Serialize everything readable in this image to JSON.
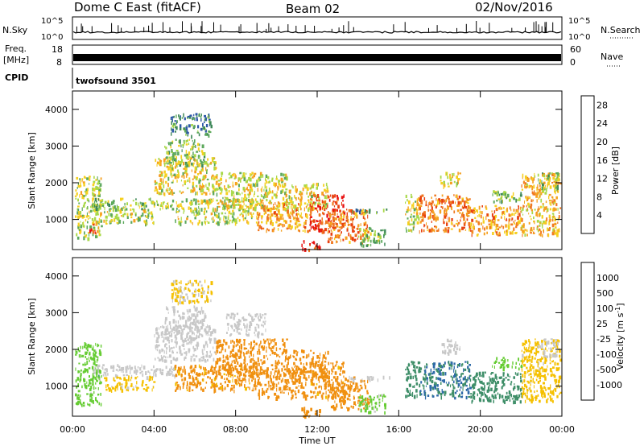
{
  "header": {
    "station": "Dome C East (fitACF)",
    "beam": "Beam 02",
    "date": "02/Nov/2016"
  },
  "strips": {
    "nsky_label": "N.Sky",
    "nsky_ticks": [
      "10^5",
      "10^0"
    ],
    "nsearch_label": "N.Search",
    "nsearch_ticks": [
      "10^5",
      "10^0"
    ],
    "freq_label_1": "Freq.",
    "freq_label_2": "[MHz]",
    "freq_ticks": [
      "18",
      "8"
    ],
    "nave_label": "Nave",
    "nave_ticks": [
      "60",
      "0"
    ],
    "cpid_label": "CPID",
    "cpid_value": "twofsound 3501"
  },
  "x_axis": {
    "label": "Time UT",
    "ticks": [
      "00:00",
      "04:00",
      "08:00",
      "12:00",
      "16:00",
      "20:00",
      "00:00"
    ]
  },
  "colors": {
    "power_scale": [
      "#1010ee",
      "#2e58a8",
      "#3e8858",
      "#5ca85c",
      "#a8d848",
      "#f5d020",
      "#f5a020",
      "#f07820",
      "#e84010",
      "#e81010"
    ],
    "velocity_scale": [
      "#1e32c8",
      "#2e6aa8",
      "#3e8e68",
      "#66cc33",
      "#c8c8c8",
      "#f5c000",
      "#f09010",
      "#e85010",
      "#e81010"
    ]
  },
  "chart_data": [
    {
      "type": "heatmap",
      "title": "Power",
      "xlabel": "Time UT",
      "ylabel": "Slant Range [km]",
      "xlim": [
        0,
        24
      ],
      "ylim": [
        180,
        4500
      ],
      "yticks": [
        1000,
        2000,
        3000,
        4000
      ],
      "colorbar_label": "Power [dB]",
      "colorbar_ticks": [
        4,
        8,
        12,
        16,
        20,
        24,
        28
      ],
      "colorbar_range": [
        0,
        30
      ],
      "regions": [
        {
          "t0": 0.1,
          "t1": 1.4,
          "r0": 500,
          "r1": 2200,
          "v": 14
        },
        {
          "t0": 0.8,
          "t1": 1.1,
          "r0": 600,
          "r1": 900,
          "v": 26
        },
        {
          "t0": 1.0,
          "t1": 5.0,
          "r0": 1300,
          "r1": 1600,
          "v": 12
        },
        {
          "t0": 1.5,
          "t1": 4.0,
          "r0": 900,
          "r1": 1300,
          "v": 14
        },
        {
          "t0": 4.0,
          "t1": 7.0,
          "r0": 1700,
          "r1": 2700,
          "v": 16
        },
        {
          "t0": 4.5,
          "t1": 6.5,
          "r0": 2500,
          "r1": 3200,
          "v": 12
        },
        {
          "t0": 4.8,
          "t1": 6.8,
          "r0": 3300,
          "r1": 3900,
          "v": 8
        },
        {
          "t0": 5.0,
          "t1": 9.0,
          "r0": 900,
          "r1": 1600,
          "v": 14
        },
        {
          "t0": 7.0,
          "t1": 10.5,
          "r0": 1300,
          "r1": 2300,
          "v": 16
        },
        {
          "t0": 9.0,
          "t1": 11.5,
          "r0": 700,
          "r1": 1500,
          "v": 20
        },
        {
          "t0": 10.5,
          "t1": 12.5,
          "r0": 1300,
          "r1": 2000,
          "v": 16
        },
        {
          "t0": 11.2,
          "t1": 12.1,
          "r0": 200,
          "r1": 450,
          "v": 28
        },
        {
          "t0": 11.6,
          "t1": 13.3,
          "r0": 700,
          "r1": 1700,
          "v": 26
        },
        {
          "t0": 12.5,
          "t1": 14.5,
          "r0": 400,
          "r1": 1300,
          "v": 22
        },
        {
          "t0": 14.0,
          "t1": 15.3,
          "r0": 300,
          "r1": 800,
          "v": 12
        },
        {
          "t0": 13.5,
          "t1": 15.6,
          "r0": 1200,
          "r1": 1300,
          "v": 8
        },
        {
          "t0": 16.3,
          "t1": 17.0,
          "r0": 700,
          "r1": 1700,
          "v": 16
        },
        {
          "t0": 17.0,
          "t1": 19.5,
          "r0": 700,
          "r1": 1700,
          "v": 22
        },
        {
          "t0": 18.0,
          "t1": 19.0,
          "r0": 1900,
          "r1": 2300,
          "v": 16
        },
        {
          "t0": 19.5,
          "t1": 22.0,
          "r0": 600,
          "r1": 1400,
          "v": 20
        },
        {
          "t0": 20.5,
          "t1": 22.0,
          "r0": 1500,
          "r1": 1800,
          "v": 12
        },
        {
          "t0": 22.0,
          "t1": 23.9,
          "r0": 600,
          "r1": 2300,
          "v": 18
        },
        {
          "t0": 22.8,
          "t1": 23.8,
          "r0": 1800,
          "r1": 2300,
          "v": 12
        }
      ]
    },
    {
      "type": "heatmap",
      "title": "Velocity",
      "xlabel": "Time UT",
      "ylabel": "Slant Range [km]",
      "xlim": [
        0,
        24
      ],
      "ylim": [
        180,
        4500
      ],
      "yticks": [
        1000,
        2000,
        3000,
        4000
      ],
      "colorbar_label": "Velocity [m s^-1]",
      "colorbar_ticks": [
        "1000",
        "500",
        "100",
        "25",
        "-25",
        "-100",
        "-500",
        "-1000"
      ],
      "colorbar_range": [
        -1000,
        1000
      ],
      "regions": [
        {
          "t0": 0.1,
          "t1": 1.4,
          "r0": 500,
          "r1": 2200,
          "v": 60
        },
        {
          "t0": 1.0,
          "t1": 5.0,
          "r0": 1300,
          "r1": 1600,
          "v": 0
        },
        {
          "t0": 1.5,
          "t1": 4.0,
          "r0": 900,
          "r1": 1300,
          "v": -40
        },
        {
          "t0": 4.0,
          "t1": 7.0,
          "r0": 1700,
          "r1": 2700,
          "v": 0
        },
        {
          "t0": 4.5,
          "t1": 6.5,
          "r0": 2500,
          "r1": 3200,
          "v": 0
        },
        {
          "t0": 4.8,
          "t1": 6.8,
          "r0": 3300,
          "r1": 3900,
          "v": -30
        },
        {
          "t0": 5.0,
          "t1": 9.0,
          "r0": 900,
          "r1": 1600,
          "v": -150
        },
        {
          "t0": 7.0,
          "t1": 10.5,
          "r0": 1300,
          "r1": 2300,
          "v": -200
        },
        {
          "t0": 7.5,
          "t1": 9.5,
          "r0": 2400,
          "r1": 3000,
          "v": 0
        },
        {
          "t0": 9.0,
          "t1": 11.5,
          "r0": 700,
          "r1": 1500,
          "v": -300
        },
        {
          "t0": 10.5,
          "t1": 12.5,
          "r0": 1300,
          "r1": 2000,
          "v": -200
        },
        {
          "t0": 11.2,
          "t1": 12.1,
          "r0": 200,
          "r1": 450,
          "v": -200
        },
        {
          "t0": 11.6,
          "t1": 13.3,
          "r0": 700,
          "r1": 1700,
          "v": -150
        },
        {
          "t0": 12.5,
          "t1": 14.5,
          "r0": 400,
          "r1": 1300,
          "v": -200
        },
        {
          "t0": 14.0,
          "t1": 15.3,
          "r0": 300,
          "r1": 800,
          "v": 40
        },
        {
          "t0": 13.5,
          "t1": 15.6,
          "r0": 1200,
          "r1": 1300,
          "v": 0
        },
        {
          "t0": 16.3,
          "t1": 17.0,
          "r0": 700,
          "r1": 1700,
          "v": 300
        },
        {
          "t0": 17.0,
          "t1": 19.5,
          "r0": 700,
          "r1": 1700,
          "v": 500
        },
        {
          "t0": 18.0,
          "t1": 19.0,
          "r0": 1900,
          "r1": 2300,
          "v": 0
        },
        {
          "t0": 19.5,
          "t1": 22.0,
          "r0": 600,
          "r1": 1400,
          "v": 250
        },
        {
          "t0": 20.5,
          "t1": 22.0,
          "r0": 1500,
          "r1": 1800,
          "v": 60
        },
        {
          "t0": 22.0,
          "t1": 23.9,
          "r0": 600,
          "r1": 2300,
          "v": -60
        },
        {
          "t0": 22.8,
          "t1": 23.8,
          "r0": 1800,
          "r1": 2300,
          "v": 0
        }
      ]
    }
  ]
}
